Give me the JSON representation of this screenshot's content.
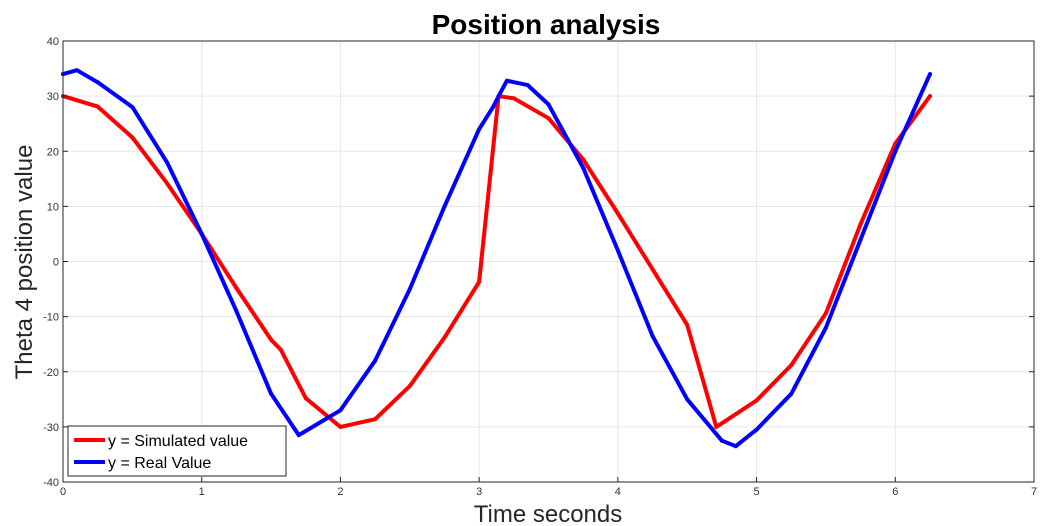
{
  "chart_data": {
    "type": "line",
    "title": "Position analysis",
    "xlabel": "Time seconds",
    "ylabel": "Theta 4 position value",
    "xlim": [
      0,
      7
    ],
    "ylim": [
      -40,
      40
    ],
    "xticks": [
      "0",
      "1",
      "2",
      "3",
      "4",
      "5",
      "6",
      "7"
    ],
    "yticks": [
      "40",
      "30",
      "20",
      "10",
      "0",
      "-10",
      "-20",
      "-30",
      "-40"
    ],
    "grid": true,
    "legend_position": "bottom-left",
    "series": [
      {
        "name": "y = Simulated value",
        "color": "#ff0000",
        "x": [
          0,
          0.25,
          0.5,
          0.75,
          1.0,
          1.25,
          1.5,
          1.57,
          1.75,
          2.0,
          2.25,
          2.5,
          2.75,
          3.0,
          3.14,
          3.25,
          3.5,
          3.75,
          4.0,
          4.25,
          4.5,
          4.71,
          5.0,
          5.25,
          5.5,
          5.75,
          6.0,
          6.25
        ],
        "y": [
          30,
          28.1,
          22.5,
          14.2,
          5.0,
          -4.8,
          -14.2,
          -16.0,
          -24.8,
          -30.0,
          -28.6,
          -22.6,
          -13.8,
          -3.7,
          30.0,
          29.6,
          26.0,
          18.5,
          8.7,
          -1.4,
          -11.5,
          -30.0,
          -25.2,
          -18.8,
          -9.4,
          6.8,
          21.4,
          30.0
        ]
      },
      {
        "name": "y = Real Value",
        "color": "#0000ff",
        "x": [
          0,
          0.1,
          0.25,
          0.5,
          0.75,
          1.0,
          1.25,
          1.5,
          1.7,
          2.0,
          2.25,
          2.5,
          2.75,
          3.0,
          3.1,
          3.14,
          3.2,
          3.35,
          3.5,
          3.75,
          4.0,
          4.25,
          4.5,
          4.75,
          4.85,
          5.0,
          5.25,
          5.5,
          5.75,
          6.0,
          6.25
        ],
        "y": [
          34,
          34.7,
          32.5,
          28.0,
          18.0,
          5.0,
          -9.0,
          -24.0,
          -31.5,
          -27.0,
          -18.0,
          -5.0,
          10.0,
          24.0,
          28.0,
          30.0,
          32.8,
          32.0,
          28.5,
          17.0,
          2.0,
          -13.5,
          -25.0,
          -32.5,
          -33.5,
          -30.5,
          -24.0,
          -12.0,
          4.0,
          20.0,
          34.0
        ]
      }
    ]
  }
}
